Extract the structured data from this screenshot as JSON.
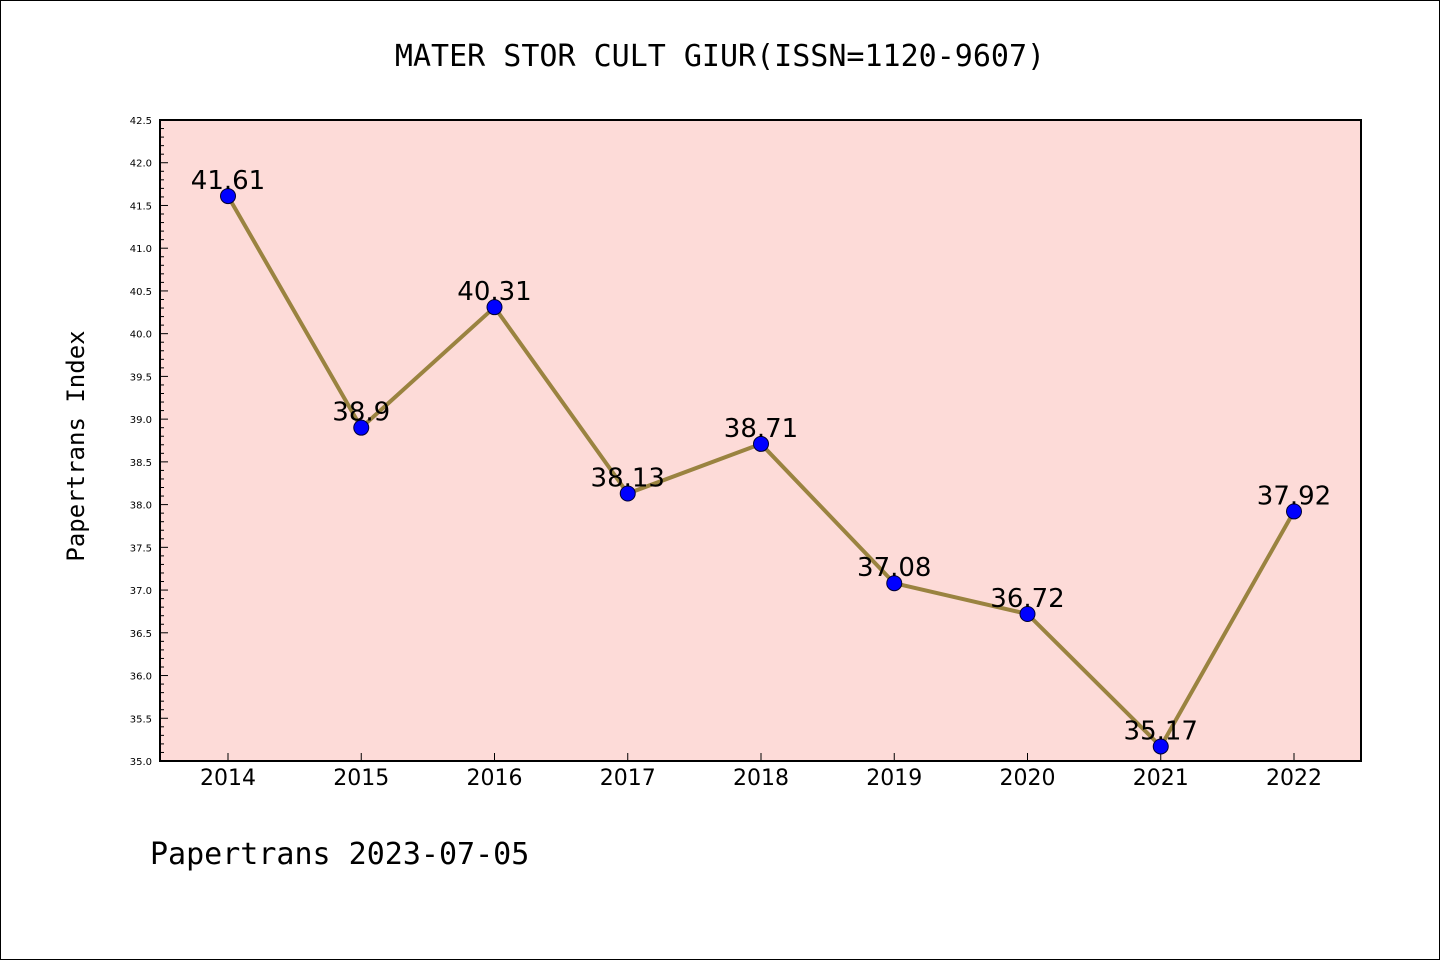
{
  "chart_data": {
    "type": "line",
    "title": "MATER STOR CULT GIUR(ISSN=1120-9607)",
    "ylabel": "Papertrans Index",
    "xlabel": "",
    "footer": "Papertrans 2023-07-05",
    "x": [
      "2014",
      "2015",
      "2016",
      "2017",
      "2018",
      "2019",
      "2020",
      "2021",
      "2022"
    ],
    "series": [
      {
        "values": [
          41.61,
          38.9,
          40.31,
          38.13,
          38.71,
          37.08,
          36.72,
          35.17,
          37.92
        ],
        "labels": [
          "41.61",
          "38.9",
          "40.31",
          "38.13",
          "38.71",
          "37.08",
          "36.72",
          "35.17",
          "37.92"
        ]
      }
    ],
    "ylim": [
      35.0,
      42.5
    ],
    "yticks": [
      "35.0",
      "35.5",
      "36.0",
      "36.5",
      "37.0",
      "37.5",
      "38.0",
      "38.5",
      "39.0",
      "39.5",
      "40.0",
      "40.5",
      "41.0",
      "41.5",
      "42.0",
      "42.5"
    ],
    "grid": false,
    "legend": "none",
    "colors": {
      "plot_background": "#fddbd8",
      "line": "#9a8340",
      "marker": "#0000ff"
    }
  }
}
